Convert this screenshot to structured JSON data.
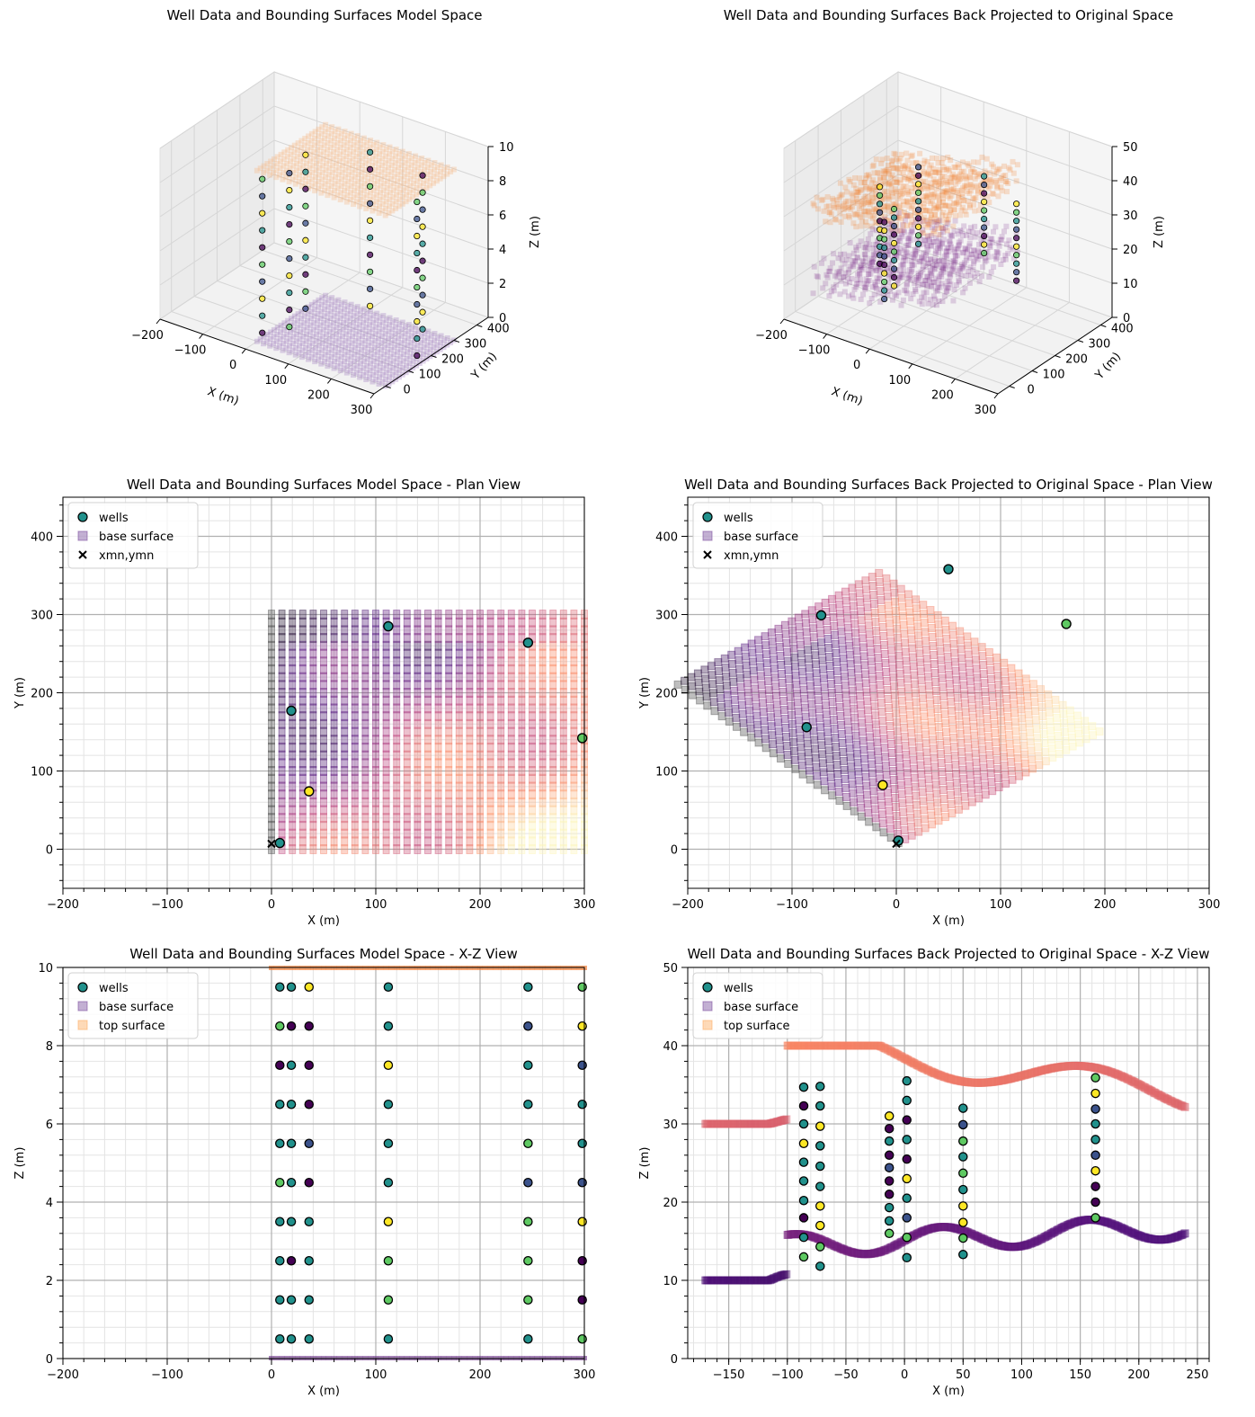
{
  "colors": {
    "well_edge": "#000000",
    "viridis": [
      "#440154",
      "#3b528b",
      "#21918c",
      "#5ec962",
      "#fde725"
    ],
    "magma": [
      "#000004",
      "#51127c",
      "#b73779",
      "#fc8961",
      "#fcfdbf"
    ],
    "base_surface": "#7b4f9e",
    "top_surface": "#fdae61",
    "grid": "#b0b0b0"
  },
  "legend_labels": {
    "wells": "wells",
    "base": "base surface",
    "top": "top surface",
    "xmn": "xmn,ymn"
  },
  "chart_data": [
    {
      "id": "model_3d",
      "type": "scatter",
      "projection": "3d",
      "title": "Well Data and Bounding Surfaces Model Space",
      "xlabel": "X (m)",
      "ylabel": "Y (m)",
      "zlabel": "Z (m)",
      "xticks": [
        "−200",
        "−100",
        "0",
        "100",
        "200",
        "300"
      ],
      "yticks": [
        "0",
        "100",
        "200",
        "300",
        "400"
      ],
      "zticks": [
        "0",
        "2",
        "4",
        "6",
        "8",
        "10"
      ],
      "xlim": [
        -200,
        300
      ],
      "ylim": [
        -50,
        450
      ],
      "zlim": [
        0,
        10
      ],
      "surfaces": [
        {
          "name": "base surface",
          "z": 0,
          "extent": {
            "x": [
              0,
              300
            ],
            "y": [
              0,
              300
            ]
          }
        },
        {
          "name": "top surface",
          "z": 10,
          "extent": {
            "x": [
              0,
              300
            ],
            "y": [
              0,
              300
            ]
          }
        }
      ],
      "wells_xy": [
        [
          8,
          8
        ],
        [
          36,
          74
        ],
        [
          19,
          177
        ],
        [
          112,
          285
        ],
        [
          246,
          264
        ],
        [
          298,
          142
        ]
      ]
    },
    {
      "id": "original_3d",
      "type": "scatter",
      "projection": "3d",
      "title": "Well Data and Bounding Surfaces Back Projected to Original Space",
      "xlabel": "X (m)",
      "ylabel": "Y (m)",
      "zlabel": "Z (m)",
      "xticks": [
        "−200",
        "−100",
        "0",
        "100",
        "200",
        "300"
      ],
      "yticks": [
        "0",
        "100",
        "200",
        "300",
        "400"
      ],
      "zticks": [
        "0",
        "10",
        "20",
        "30",
        "40",
        "50"
      ],
      "xlim": [
        -200,
        300
      ],
      "ylim": [
        -50,
        450
      ],
      "zlim": [
        0,
        50
      ]
    },
    {
      "id": "model_plan",
      "type": "scatter",
      "title": "Well Data and Bounding Surfaces Model Space - Plan View",
      "xlabel": "X (m)",
      "ylabel": "Y (m)",
      "xlim": [
        -200,
        300
      ],
      "ylim": [
        -50,
        450
      ],
      "xticks": [
        -200,
        -100,
        0,
        100,
        200,
        300
      ],
      "yticks": [
        0,
        100,
        200,
        300,
        400
      ],
      "grid": true,
      "legend": "upper left",
      "surface_grid": {
        "x": [
          0,
          300
        ],
        "y": [
          0,
          300
        ],
        "step": 10
      },
      "wells": [
        {
          "x": 8,
          "y": 8,
          "c": 2
        },
        {
          "x": 36,
          "y": 74,
          "c": 4
        },
        {
          "x": 19,
          "y": 177,
          "c": 2
        },
        {
          "x": 112,
          "y": 285,
          "c": 2
        },
        {
          "x": 246,
          "y": 264,
          "c": 2
        },
        {
          "x": 298,
          "y": 142,
          "c": 3
        }
      ],
      "xmn_ymn": [
        0,
        7
      ]
    },
    {
      "id": "original_plan",
      "type": "scatter",
      "title": "Well Data and Bounding Surfaces Back Projected to Original Space - Plan View",
      "xlabel": "X (m)",
      "ylabel": "Y (m)",
      "xlim": [
        -200,
        300
      ],
      "ylim": [
        -50,
        450
      ],
      "xticks": [
        -200,
        -100,
        0,
        100,
        200,
        300
      ],
      "yticks": [
        0,
        100,
        200,
        300,
        400
      ],
      "grid": true,
      "legend": "upper left",
      "rotation_deg": 50,
      "surface_grid": {
        "x": [
          0,
          300
        ],
        "y": [
          0,
          300
        ],
        "step": 10
      },
      "wells": [
        {
          "x": 2,
          "y": 11,
          "c": 2
        },
        {
          "x": -13,
          "y": 82,
          "c": 4
        },
        {
          "x": -86,
          "y": 156,
          "c": 2
        },
        {
          "x": -72,
          "y": 299,
          "c": 2
        },
        {
          "x": 50,
          "y": 358,
          "c": 2
        },
        {
          "x": 163,
          "y": 288,
          "c": 3
        }
      ],
      "xmn_ymn": [
        0,
        7
      ]
    },
    {
      "id": "model_xz",
      "type": "scatter",
      "title": "Well Data and Bounding Surfaces Model Space - X-Z View",
      "xlabel": "X (m)",
      "ylabel": "Z (m)",
      "xlim": [
        -200,
        300
      ],
      "ylim": [
        0,
        10
      ],
      "xticks": [
        -200,
        -100,
        0,
        100,
        200,
        300
      ],
      "yticks": [
        0,
        2,
        4,
        6,
        8,
        10
      ],
      "grid": true,
      "legend": "upper left",
      "base_z": 0,
      "top_z": 10,
      "surface_x": [
        0,
        300
      ],
      "well_x": [
        8,
        19,
        36,
        112,
        246,
        298
      ],
      "sample_z": [
        0.5,
        1.5,
        2.5,
        3.5,
        4.5,
        5.5,
        6.5,
        7.5,
        8.5,
        9.5
      ],
      "colors_by_well": [
        [
          2,
          2,
          2,
          2,
          3,
          2,
          2,
          0,
          3,
          2
        ],
        [
          2,
          2,
          0,
          2,
          2,
          2,
          2,
          2,
          0,
          2
        ],
        [
          2,
          2,
          2,
          2,
          0,
          1,
          0,
          0,
          0,
          4
        ],
        [
          2,
          3,
          3,
          4,
          2,
          2,
          2,
          4,
          2,
          2
        ],
        [
          2,
          3,
          3,
          3,
          1,
          3,
          2,
          2,
          1,
          2
        ],
        [
          3,
          0,
          0,
          4,
          1,
          2,
          2,
          1,
          4,
          3
        ]
      ]
    },
    {
      "id": "original_xz",
      "type": "scatter",
      "title": "Well Data and Bounding Surfaces Back Projected to Original Space  - X-Z View",
      "xlabel": "X (m)",
      "ylabel": "Z (m)",
      "xlim": [
        -185,
        260
      ],
      "ylim": [
        0,
        50
      ],
      "xticks": [
        -150,
        -100,
        -50,
        0,
        50,
        100,
        150,
        200,
        250
      ],
      "yticks": [
        0,
        10,
        20,
        30,
        40,
        50
      ],
      "grid": true,
      "legend": "upper left",
      "base_range_z": [
        10,
        20
      ],
      "top_range_z": [
        30,
        40
      ],
      "wells": [
        {
          "x": -86,
          "z": [
            13,
            15.5,
            18,
            20.2,
            22.7,
            25.1,
            27.5,
            30,
            32.3,
            34.7
          ],
          "c": [
            3,
            2,
            0,
            2,
            2,
            2,
            4,
            2,
            0,
            2
          ]
        },
        {
          "x": -72,
          "z": [
            11.8,
            14.3,
            17,
            19.5,
            22,
            24.6,
            27.2,
            29.7,
            32.3,
            34.8
          ],
          "c": [
            2,
            3,
            4,
            4,
            2,
            2,
            2,
            4,
            2,
            2
          ]
        },
        {
          "x": -13,
          "z": [
            16,
            17.6,
            19.3,
            21,
            22.7,
            24.4,
            26,
            27.8,
            29.4,
            31
          ],
          "c": [
            3,
            2,
            2,
            0,
            0,
            1,
            0,
            2,
            0,
            4
          ]
        },
        {
          "x": 2,
          "z": [
            12.9,
            15.5,
            18,
            20.5,
            23,
            25.5,
            28,
            30.5,
            33,
            35.5
          ],
          "c": [
            2,
            3,
            1,
            2,
            4,
            0,
            2,
            0,
            2,
            2
          ]
        },
        {
          "x": 50,
          "z": [
            13.3,
            15.4,
            17.4,
            19.5,
            21.6,
            23.7,
            25.8,
            27.8,
            29.9,
            32
          ],
          "c": [
            2,
            3,
            4,
            4,
            2,
            3,
            2,
            3,
            1,
            2
          ]
        },
        {
          "x": 163,
          "z": [
            18,
            20,
            22,
            24,
            26,
            28,
            30,
            31.9,
            33.9,
            35.9
          ],
          "c": [
            3,
            0,
            0,
            4,
            1,
            2,
            2,
            1,
            4,
            3
          ]
        }
      ]
    }
  ]
}
